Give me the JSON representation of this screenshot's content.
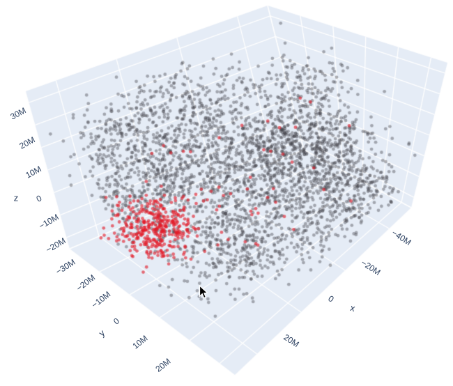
{
  "chart_data": {
    "type": "scatter3d",
    "title": "",
    "background_color": "#ffffff",
    "scene": {
      "wall_color": "#e5ecf6",
      "grid_color": "#ffffff",
      "edge_color": "#ffffff",
      "tick_font_color": "#2a3f5f"
    },
    "axes": {
      "x": {
        "range_m": [
          30,
          -50
        ],
        "grid_values_m": [
          20,
          0,
          -20,
          -40
        ],
        "tick_labels": [
          {
            "text": "20M",
            "x": 418,
            "y": 489,
            "rot": 33
          },
          {
            "text": "0",
            "x": 475,
            "y": 429,
            "rot": 33
          },
          {
            "text": "−20M",
            "x": 532,
            "y": 384,
            "rot": 33
          },
          {
            "text": "−40M",
            "x": 576,
            "y": 341,
            "rot": 33
          }
        ],
        "title_label": {
          "text": "x",
          "x": 506,
          "y": 442,
          "rot": 15
        }
      },
      "y": {
        "range_m": [
          -30,
          25
        ],
        "grid_values_m": [
          -20,
          -10,
          0,
          10,
          20
        ],
        "tick_labels": [
          {
            "text": "−20M",
            "x": 123,
            "y": 406,
            "rot": -38
          },
          {
            "text": "−10M",
            "x": 145,
            "y": 430,
            "rot": -38
          },
          {
            "text": "0",
            "x": 167,
            "y": 461,
            "rot": -38
          },
          {
            "text": "10M",
            "x": 201,
            "y": 491,
            "rot": -38
          },
          {
            "text": "20M",
            "x": 234,
            "y": 524,
            "rot": -38
          }
        ],
        "title_label": {
          "text": "y",
          "x": 146,
          "y": 478,
          "rot": -38
        }
      },
      "z": {
        "range_m": [
          -35,
          35
        ],
        "grid_values_m": [
          30,
          20,
          10,
          0,
          -10,
          -20,
          -30
        ],
        "tick_labels": [
          {
            "text": "30M",
            "x": 26,
            "y": 163,
            "rot": -28
          },
          {
            "text": "20M",
            "x": 39,
            "y": 205,
            "rot": -28
          },
          {
            "text": "10M",
            "x": 48,
            "y": 247,
            "rot": -28
          },
          {
            "text": "0",
            "x": 56,
            "y": 285,
            "rot": -28
          },
          {
            "text": "−10M",
            "x": 70,
            "y": 318,
            "rot": -30
          },
          {
            "text": "−20M",
            "x": 80,
            "y": 352,
            "rot": -30
          },
          {
            "text": "−30M",
            "x": 94,
            "y": 383,
            "rot": -32
          }
        ],
        "title_label": {
          "text": "z",
          "x": 23,
          "y": 284,
          "rot": 0
        }
      }
    },
    "projection": {
      "corners": {
        "A": [
          384,
          8
        ],
        "B": [
          37,
          131
        ],
        "C": [
          100,
          357
        ],
        "D": [
          436,
          215
        ],
        "E": [
          337,
          538
        ],
        "G": [
          642,
          90
        ],
        "H": [
          590,
          298
        ],
        "N": [
          277,
          280
        ]
      },
      "seed": 42
    },
    "series": [
      {
        "name": "base-points",
        "color": "rgba(68,70,77,0.42)",
        "marker_radius": 2.4,
        "clusters": [
          {
            "n": 520,
            "center_m": [
              -8,
              -4,
              2
            ],
            "sigma_m": [
              13,
              10,
              11
            ]
          },
          {
            "n": 620,
            "center_m": [
              -30,
              1,
              -6
            ],
            "sigma_m": [
              9,
              8,
              9
            ]
          },
          {
            "n": 300,
            "center_m": [
              -4,
              -18,
              18
            ],
            "sigma_m": [
              11,
              7,
              7
            ]
          },
          {
            "n": 350,
            "center_m": [
              0,
              2,
              -24
            ],
            "sigma_m": [
              9,
              8,
              6
            ]
          },
          {
            "n": 160,
            "center_m": [
              20,
              -12,
              -2
            ],
            "sigma_m": [
              5,
              6,
              8
            ]
          },
          {
            "n": 140,
            "center_m": [
              16,
              -20,
              12
            ],
            "sigma_m": [
              6,
              5,
              6
            ]
          },
          {
            "n": 180,
            "center_m": [
              -36,
              13,
              -20
            ],
            "sigma_m": [
              6,
              6,
              5
            ]
          },
          {
            "n": 170,
            "center_m": [
              -36,
              -8,
              16
            ],
            "sigma_m": [
              7,
              7,
              6
            ]
          },
          {
            "n": 480,
            "center_m": [
              -8,
              -2,
              -2
            ],
            "sigma_m": [
              19,
              14,
              14
            ]
          },
          {
            "n": 120,
            "center_m": [
              -20,
              14,
              -24
            ],
            "sigma_m": [
              7,
              5,
              4
            ]
          },
          {
            "n": 130,
            "center_m": [
              8,
              -8,
              8
            ],
            "sigma_m": [
              6,
              6,
              6
            ]
          }
        ]
      },
      {
        "name": "highlighted-points",
        "color": "rgba(226,28,40,0.62)",
        "marker_radius": 2.4,
        "clusters": [
          {
            "n": 360,
            "center_m": [
              17,
              -10,
              -15
            ],
            "sigma_m": [
              5.5,
              4.5,
              5
            ]
          },
          {
            "n": 55,
            "center_m": [
              -6,
              -2,
              -6
            ],
            "sigma_m": [
              16,
              12,
              10
            ]
          }
        ]
      }
    ],
    "cursor": {
      "x": 287,
      "y": 410
    }
  }
}
